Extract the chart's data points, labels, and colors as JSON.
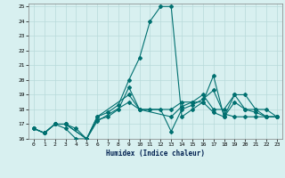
{
  "xlabel": "Humidex (Indice chaleur)",
  "bg_color": "#d8f0f0",
  "line_color": "#007070",
  "grid_color": "#b8dada",
  "xlim": [
    -0.5,
    23.5
  ],
  "ylim": [
    16,
    25.2
  ],
  "yticks": [
    16,
    17,
    18,
    19,
    20,
    21,
    22,
    23,
    24,
    25
  ],
  "xticks": [
    0,
    1,
    2,
    3,
    4,
    5,
    6,
    7,
    8,
    9,
    10,
    11,
    12,
    13,
    14,
    15,
    16,
    17,
    18,
    19,
    20,
    21,
    22,
    23
  ],
  "xs1": [
    0,
    1,
    2,
    3,
    4,
    5,
    6,
    7,
    8,
    9,
    10,
    11,
    12,
    13,
    14,
    15,
    16,
    17,
    18,
    19,
    20,
    21,
    22,
    23
  ],
  "ys1": [
    16.7,
    16.4,
    17.0,
    17.0,
    16.7,
    16.0,
    17.5,
    17.8,
    18.3,
    20.0,
    21.5,
    24.0,
    25.0,
    25.0,
    17.5,
    18.0,
    18.5,
    20.3,
    17.5,
    19.0,
    19.0,
    18.0,
    17.5,
    17.5
  ],
  "xs2": [
    0,
    1,
    2,
    3,
    4,
    5,
    6,
    7,
    8,
    9,
    10,
    11,
    12,
    13,
    14,
    15,
    16,
    17,
    18,
    19,
    20,
    21,
    22,
    23
  ],
  "ys2": [
    16.7,
    16.4,
    17.0,
    16.7,
    16.0,
    16.0,
    17.3,
    17.5,
    18.0,
    19.5,
    18.0,
    18.0,
    18.0,
    16.5,
    18.0,
    18.3,
    18.7,
    19.3,
    17.7,
    17.5,
    17.5,
    17.5,
    17.5,
    17.5
  ],
  "xs3": [
    0,
    1,
    2,
    3,
    5,
    6,
    9,
    10,
    13,
    14,
    15,
    16,
    17,
    18,
    19,
    20,
    21,
    22,
    23
  ],
  "ys3": [
    16.7,
    16.4,
    17.0,
    17.0,
    16.0,
    17.5,
    19.0,
    18.0,
    18.0,
    18.5,
    18.5,
    19.0,
    18.0,
    18.0,
    19.0,
    18.0,
    18.0,
    18.0,
    17.5
  ],
  "xs4": [
    0,
    1,
    2,
    3,
    5,
    6,
    9,
    10,
    13,
    14,
    15,
    16,
    17,
    18,
    19,
    20,
    21,
    22,
    23
  ],
  "ys4": [
    16.7,
    16.4,
    17.0,
    17.0,
    16.0,
    17.2,
    18.5,
    18.0,
    17.5,
    18.2,
    18.5,
    18.5,
    17.8,
    17.5,
    18.5,
    18.0,
    17.8,
    17.5,
    17.5
  ]
}
